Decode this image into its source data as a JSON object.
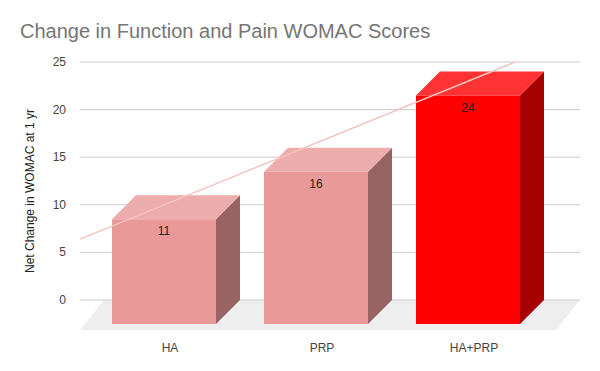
{
  "chart_data": {
    "type": "bar",
    "title": "Change in Function and Pain WOMAC Scores",
    "y_label": "Net Change in WOMAC at 1 yr",
    "categories": [
      "HA",
      "PRP",
      "HA+PRP"
    ],
    "values": [
      11,
      16,
      24
    ],
    "colors": [
      "#ea9999",
      "#ea9999",
      "#ff0000"
    ],
    "ylim": [
      0,
      25
    ],
    "yticks": [
      0,
      5,
      10,
      15,
      20,
      25
    ],
    "grid": true,
    "data_labels": true
  }
}
